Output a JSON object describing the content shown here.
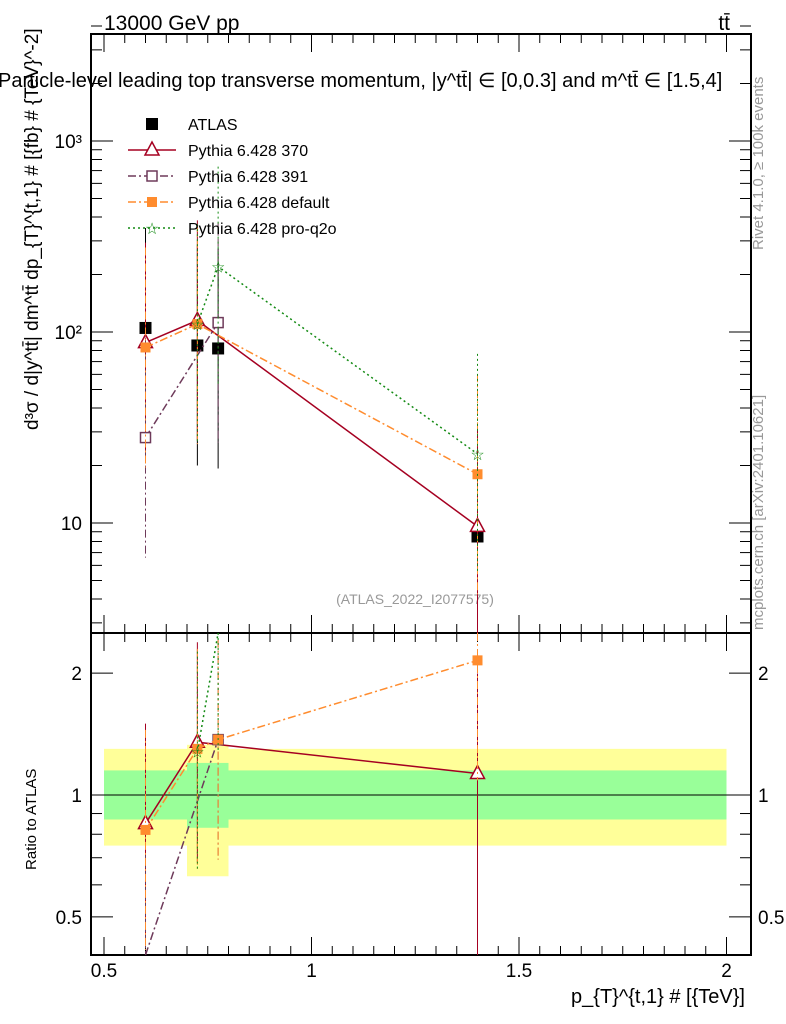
{
  "header": {
    "left": "13000 GeV pp",
    "right": "tt̄"
  },
  "side_labels": {
    "rivet": "Rivet 4.1.0, ≥ 100k events",
    "mcplots": "mcplots.cern.ch [arXiv:2401.10621]"
  },
  "watermark": "(ATLAS_2022_I2077575)",
  "colors": {
    "atlas": "#000000",
    "p370": "#a50021",
    "p391": "#6e3a5a",
    "default": "#ff8c2e",
    "q2o": "#138a13",
    "yellow": "#ffff99",
    "green": "#99ff99"
  },
  "chart_data": [
    {
      "type": "line",
      "title": "Particle-level leading top transverse momentum, |y^tt̄| ∈ [0,0.3] and m^tt̄ ∈ [1.5,4]",
      "ylabel": "d³σ / d|y^tt̄| dm^tt̄ dp_{T}^{t,1} # [{fb} # {TeV}^-2]",
      "yscale": "log",
      "ylim": [
        2.6,
        4000
      ],
      "yticks": [
        "10",
        "10²",
        "10³"
      ],
      "xlim": [
        0.45,
        2.05
      ],
      "legend_position": "top-left",
      "series": [
        {
          "name": "ATLAS",
          "x": [
            0.6,
            0.725,
            0.775,
            1.4
          ],
          "y": [
            105,
            85,
            82,
            8.5
          ]
        },
        {
          "name": "Pythia 6.428 370",
          "x": [
            0.6,
            0.725,
            1.4
          ],
          "y": [
            88,
            115,
            9.6
          ]
        },
        {
          "name": "Pythia 6.428 391",
          "x": [
            0.6,
            0.775
          ],
          "y": [
            28,
            112
          ]
        },
        {
          "name": "Pythia 6.428 default",
          "x": [
            0.6,
            0.725,
            1.4
          ],
          "y": [
            83,
            110,
            18
          ]
        },
        {
          "name": "Pythia 6.428 pro-q2o",
          "x": [
            0.725,
            0.775,
            1.4
          ],
          "y": [
            110,
            220,
            23
          ]
        }
      ]
    },
    {
      "type": "line",
      "ylabel": "Ratio to ATLAS",
      "xlabel": "p_{T}^{t,1} # [{TeV}]",
      "yscale": "log",
      "ylim": [
        0.4,
        2.4
      ],
      "yticks": [
        "0.5",
        "1",
        "2"
      ],
      "xticks": [
        "0.5",
        "1",
        "1.5",
        "2"
      ],
      "series": [
        {
          "name": "Pythia 6.428 370",
          "x": [
            0.6,
            0.725,
            1.4
          ],
          "y": [
            0.85,
            1.35,
            1.13
          ]
        },
        {
          "name": "Pythia 6.428 391",
          "x": [
            0.6,
            0.775
          ],
          "y": [
            0.3,
            1.37
          ]
        },
        {
          "name": "Pythia 6.428 default",
          "x": [
            0.6,
            0.725,
            0.775,
            1.4
          ],
          "y": [
            0.82,
            1.3,
            1.37,
            2.15
          ]
        },
        {
          "name": "Pythia 6.428 pro-q2o",
          "x": [
            0.725,
            0.775
          ],
          "y": [
            1.28,
            3.0
          ]
        }
      ],
      "bands": {
        "yellow": [
          0.75,
          1.3
        ],
        "green": [
          0.87,
          1.15
        ]
      }
    }
  ]
}
